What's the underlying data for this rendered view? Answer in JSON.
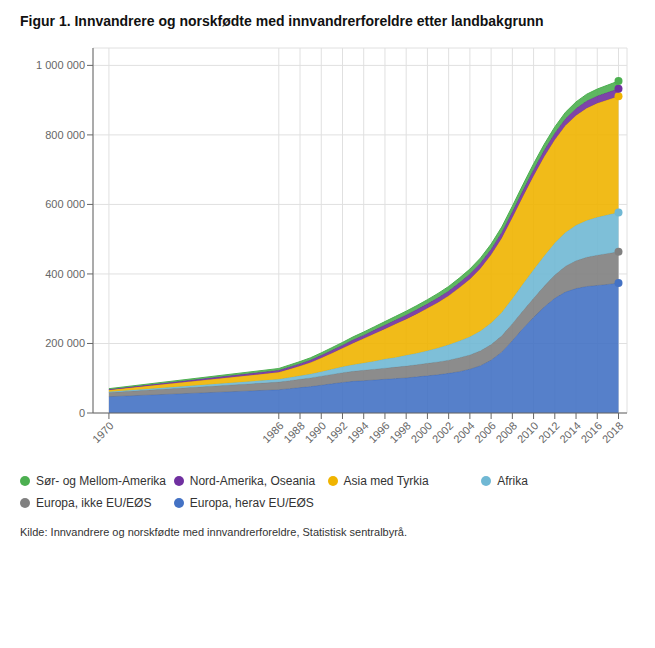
{
  "chart_data": {
    "type": "area",
    "stacked": true,
    "title": "Figur 1. Innvandrere og norskfødte med innvandrerforeldre etter landbakgrunn",
    "source": "Kilde: Innvandrere og norskfødte med innvandrerforeldre, Statistisk sentralbyrå.",
    "x": [
      1970,
      1986,
      1987,
      1988,
      1989,
      1990,
      1991,
      1992,
      1993,
      1994,
      1995,
      1996,
      1997,
      1998,
      1999,
      2000,
      2001,
      2002,
      2003,
      2004,
      2005,
      2006,
      2007,
      2008,
      2009,
      2010,
      2011,
      2012,
      2013,
      2014,
      2015,
      2016,
      2017,
      2018
    ],
    "series": [
      {
        "name": "Europa, herav EU/EØS",
        "color": "#4472c4",
        "values": [
          47000,
          67000,
          70000,
          73000,
          76000,
          80000,
          84000,
          88000,
          91000,
          93000,
          95000,
          97000,
          99000,
          101000,
          104000,
          107000,
          110000,
          114000,
          119000,
          126000,
          136000,
          152000,
          175000,
          208000,
          243000,
          275000,
          305000,
          330000,
          348000,
          358000,
          364000,
          367000,
          370000,
          374000
        ]
      },
      {
        "name": "Europa, ikke EU/EØS",
        "color": "#808080",
        "values": [
          12000,
          22000,
          23000,
          24000,
          25000,
          26000,
          27000,
          28000,
          29000,
          30000,
          31000,
          32000,
          33000,
          34000,
          35000,
          36000,
          37000,
          38000,
          40000,
          41000,
          43000,
          45000,
          47000,
          49000,
          51000,
          55000,
          60000,
          67000,
          74000,
          80000,
          84000,
          87000,
          89000,
          90000
        ]
      },
      {
        "name": "Afrika",
        "color": "#70b8d4",
        "values": [
          2000,
          8000,
          9000,
          10000,
          11000,
          13000,
          15000,
          17000,
          19000,
          21000,
          23000,
          26000,
          28000,
          31000,
          33000,
          36000,
          40000,
          44000,
          48000,
          52000,
          57000,
          62000,
          67000,
          72000,
          77000,
          82000,
          87000,
          92000,
          97000,
          102000,
          106000,
          109000,
          111000,
          113000
        ]
      },
      {
        "name": "Asia med Tyrkia",
        "color": "#f0b400",
        "values": [
          5000,
          20000,
          24000,
          28000,
          33000,
          39000,
          46000,
          53000,
          62000,
          70000,
          79000,
          87000,
          96000,
          104000,
          113000,
          122000,
          131000,
          141000,
          153000,
          166000,
          180000,
          196000,
          214000,
          233000,
          252000,
          270000,
          285000,
          297000,
          308000,
          316000,
          323000,
          328000,
          331000,
          334000
        ]
      },
      {
        "name": "Nord-Amerika, Oseania",
        "color": "#7030a0",
        "values": [
          2000,
          6000,
          6500,
          7000,
          7500,
          8000,
          8500,
          9000,
          9500,
          10000,
          10500,
          11000,
          11500,
          12000,
          12500,
          13000,
          13500,
          14000,
          14500,
          15000,
          15500,
          16000,
          16500,
          17000,
          17500,
          18000,
          18500,
          19000,
          19500,
          20000,
          20500,
          21000,
          21500,
          22000
        ]
      },
      {
        "name": "Sør- og Mellom-Amerika",
        "color": "#4caf50",
        "values": [
          2000,
          5000,
          5500,
          6000,
          6500,
          7000,
          7500,
          8000,
          8500,
          9000,
          9500,
          10000,
          10500,
          11000,
          11500,
          12000,
          12500,
          13000,
          13500,
          14000,
          14500,
          15000,
          15500,
          16000,
          16500,
          17000,
          17500,
          18000,
          18500,
          19000,
          19500,
          20000,
          21000,
          22000
        ]
      }
    ],
    "xlim": [
      1968.5,
      2018.8
    ],
    "xticks": [
      1970,
      1986,
      1988,
      1990,
      1992,
      1994,
      1996,
      1998,
      2000,
      2002,
      2004,
      2006,
      2008,
      2010,
      2012,
      2014,
      2016,
      2018
    ],
    "ylim": [
      0,
      1050000
    ],
    "yticks": [
      0,
      {
        "value": 200000,
        "label": "200 000"
      },
      {
        "value": 400000,
        "label": "400 000"
      },
      {
        "value": 600000,
        "label": "600 000"
      },
      {
        "value": 800000,
        "label": "800 000"
      },
      {
        "value": 1000000,
        "label": "1 000 000"
      }
    ],
    "grid": true,
    "legend": "bottom"
  }
}
